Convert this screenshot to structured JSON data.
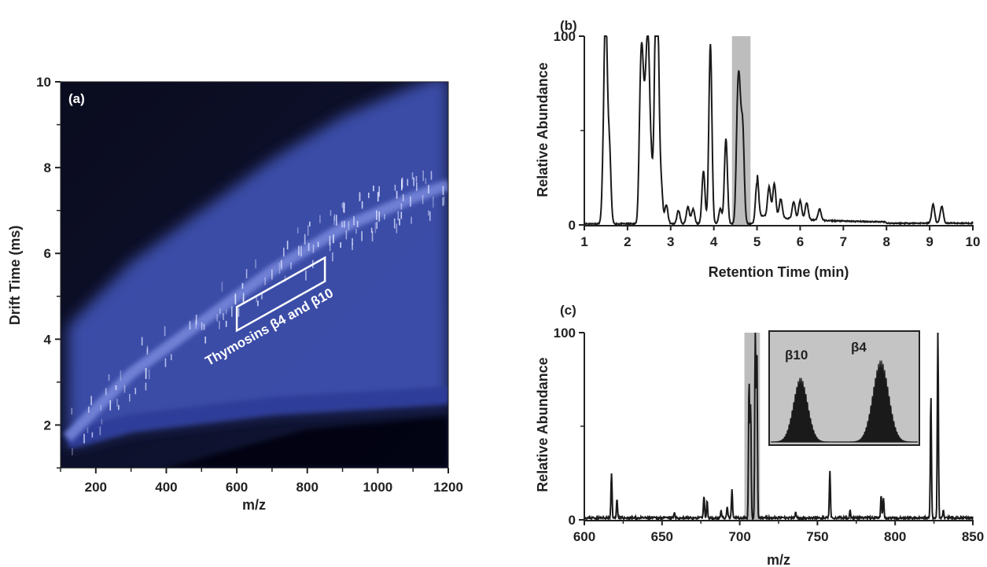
{
  "figure": {
    "panels": [
      "(a)",
      "(b)",
      "(c)"
    ]
  },
  "chart_data": [
    {
      "panel": "(a)",
      "type": "heatmap",
      "xlabel": "m/z",
      "ylabel": "Drift Time (ms)",
      "xlim": [
        100,
        1200
      ],
      "ylim": [
        1,
        10
      ],
      "xticks": [
        200,
        400,
        600,
        800,
        1000,
        1200
      ],
      "yticks": [
        2,
        4,
        6,
        8,
        10
      ],
      "colors": {
        "background": "#050510",
        "band": "#3f52b5",
        "bright": "#dfe4ff"
      },
      "annotation": {
        "label": "Thymosins β4 and  β10",
        "box": {
          "mz": [
            600,
            850
          ],
          "drift": [
            4.2,
            5.9
          ]
        }
      },
      "bands": [
        {
          "x": [
            120,
            300,
            500,
            700,
            900,
            1100,
            1200
          ],
          "y": [
            1.7,
            3.2,
            4.4,
            5.6,
            6.6,
            7.3,
            7.6
          ]
        },
        {
          "x": [
            120,
            300,
            500,
            700,
            900,
            1100,
            1200
          ],
          "y": [
            1.3,
            1.7,
            1.9,
            2.1,
            2.2,
            2.3,
            2.35
          ]
        }
      ]
    },
    {
      "panel": "(b)",
      "type": "line",
      "xlabel": "Retention Time (min)",
      "ylabel": "Relative Abundance",
      "xlim": [
        1,
        10
      ],
      "ylim": [
        0,
        100
      ],
      "xticks": [
        1,
        2,
        3,
        4,
        5,
        6,
        7,
        8,
        9,
        10
      ],
      "yticks": [
        0,
        100
      ],
      "highlight": [
        4.42,
        4.85
      ],
      "peaks": [
        {
          "x": 1.45,
          "y": 35
        },
        {
          "x": 1.5,
          "y": 100
        },
        {
          "x": 1.58,
          "y": 40
        },
        {
          "x": 2.3,
          "y": 60
        },
        {
          "x": 2.35,
          "y": 62
        },
        {
          "x": 2.42,
          "y": 55
        },
        {
          "x": 2.48,
          "y": 85
        },
        {
          "x": 2.55,
          "y": 30
        },
        {
          "x": 2.65,
          "y": 90
        },
        {
          "x": 2.7,
          "y": 92
        },
        {
          "x": 2.78,
          "y": 20
        },
        {
          "x": 2.9,
          "y": 10
        },
        {
          "x": 3.18,
          "y": 7
        },
        {
          "x": 3.4,
          "y": 9
        },
        {
          "x": 3.52,
          "y": 8
        },
        {
          "x": 3.76,
          "y": 28
        },
        {
          "x": 3.92,
          "y": 95
        },
        {
          "x": 4.15,
          "y": 8
        },
        {
          "x": 4.28,
          "y": 45
        },
        {
          "x": 4.55,
          "y": 53
        },
        {
          "x": 4.6,
          "y": 50
        },
        {
          "x": 4.67,
          "y": 48
        },
        {
          "x": 5.0,
          "y": 22
        },
        {
          "x": 5.28,
          "y": 16
        },
        {
          "x": 5.4,
          "y": 18
        },
        {
          "x": 5.55,
          "y": 10
        },
        {
          "x": 5.85,
          "y": 9
        },
        {
          "x": 6.0,
          "y": 10
        },
        {
          "x": 6.15,
          "y": 9
        },
        {
          "x": 6.45,
          "y": 6
        },
        {
          "x": 9.08,
          "y": 10
        },
        {
          "x": 9.28,
          "y": 9
        }
      ]
    },
    {
      "panel": "(c)",
      "type": "line",
      "xlabel": "m/z",
      "ylabel": "Relative Abundance",
      "xlim": [
        600,
        850
      ],
      "ylim": [
        0,
        100
      ],
      "xticks": [
        600,
        650,
        700,
        750,
        800,
        850
      ],
      "yticks": [
        0,
        100
      ],
      "highlight": [
        703,
        713
      ],
      "inset_labels": [
        "β10",
        "β4"
      ],
      "peaks": [
        {
          "x": 617.5,
          "y": 24
        },
        {
          "x": 621,
          "y": 10
        },
        {
          "x": 658,
          "y": 3
        },
        {
          "x": 677,
          "y": 12
        },
        {
          "x": 679,
          "y": 9
        },
        {
          "x": 688,
          "y": 4
        },
        {
          "x": 692,
          "y": 6
        },
        {
          "x": 695,
          "y": 15
        },
        {
          "x": 706,
          "y": 73
        },
        {
          "x": 707,
          "y": 60
        },
        {
          "x": 710,
          "y": 100
        },
        {
          "x": 711,
          "y": 90
        },
        {
          "x": 736,
          "y": 3
        },
        {
          "x": 758,
          "y": 25
        },
        {
          "x": 771,
          "y": 4
        },
        {
          "x": 791,
          "y": 12
        },
        {
          "x": 792.5,
          "y": 11
        },
        {
          "x": 823,
          "y": 65
        },
        {
          "x": 827.5,
          "y": 100
        },
        {
          "x": 831,
          "y": 4
        }
      ]
    }
  ]
}
